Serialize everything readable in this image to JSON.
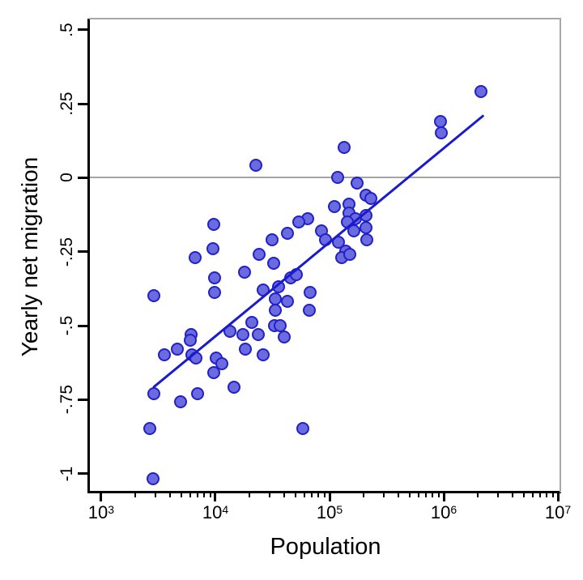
{
  "chart_data": {
    "type": "scatter",
    "title": "",
    "xlabel": "Population",
    "ylabel": "Yearly net migration",
    "x_scale": "log10",
    "xlim_log10": [
      2.894,
      7.028
    ],
    "ylim": [
      -1.064,
      0.538
    ],
    "grid": false,
    "legend": null,
    "zero_line_y": 0,
    "x_ticks": [
      {
        "value": 1000,
        "base": "10",
        "exp": "3"
      },
      {
        "value": 10000,
        "base": "10",
        "exp": "4"
      },
      {
        "value": 100000,
        "base": "10",
        "exp": "5"
      },
      {
        "value": 1000000,
        "base": "10",
        "exp": "6"
      },
      {
        "value": 10000000,
        "base": "10",
        "exp": "7"
      }
    ],
    "x_minor_tick_multipliers": [
      2,
      3,
      4,
      5,
      6,
      7,
      8,
      9
    ],
    "x_minor_tick_decades": [
      3,
      4,
      5,
      6
    ],
    "y_ticks": [
      {
        "value": 0.5,
        "label": ".5"
      },
      {
        "value": 0.25,
        "label": ".25"
      },
      {
        "value": 0,
        "label": "0"
      },
      {
        "value": -0.25,
        "label": "-.25"
      },
      {
        "value": -0.5,
        "label": "-.5"
      },
      {
        "value": -0.75,
        "label": "-.75"
      },
      {
        "value": -1,
        "label": "-1"
      }
    ],
    "points": [
      [
        2900,
        -0.4
      ],
      [
        2700,
        -0.85
      ],
      [
        2850,
        -1.02
      ],
      [
        2900,
        -0.73
      ],
      [
        3600,
        -0.6
      ],
      [
        4700,
        -0.58
      ],
      [
        6200,
        -0.53
      ],
      [
        6100,
        -0.55
      ],
      [
        6300,
        -0.6
      ],
      [
        6800,
        -0.61
      ],
      [
        5000,
        -0.76
      ],
      [
        7000,
        -0.73
      ],
      [
        6700,
        -0.27
      ],
      [
        9700,
        -0.16
      ],
      [
        9600,
        -0.24
      ],
      [
        10000,
        -0.34
      ],
      [
        10000,
        -0.39
      ],
      [
        10200,
        -0.61
      ],
      [
        11500,
        -0.63
      ],
      [
        9700,
        -0.66
      ],
      [
        13500,
        -0.52
      ],
      [
        17600,
        -0.53
      ],
      [
        21000,
        -0.49
      ],
      [
        24000,
        -0.53
      ],
      [
        18600,
        -0.58
      ],
      [
        14800,
        -0.71
      ],
      [
        18300,
        -0.32
      ],
      [
        22700,
        0.04
      ],
      [
        24400,
        -0.26
      ],
      [
        31700,
        -0.21
      ],
      [
        32500,
        -0.29
      ],
      [
        26300,
        -0.38
      ],
      [
        36000,
        -0.37
      ],
      [
        46000,
        -0.34
      ],
      [
        52000,
        -0.33
      ],
      [
        34000,
        -0.41
      ],
      [
        43000,
        -0.42
      ],
      [
        34000,
        -0.45
      ],
      [
        33000,
        -0.5
      ],
      [
        37500,
        -0.5
      ],
      [
        40500,
        -0.54
      ],
      [
        26500,
        -0.6
      ],
      [
        68000,
        -0.39
      ],
      [
        67000,
        -0.45
      ],
      [
        65000,
        -0.14
      ],
      [
        54000,
        -0.15
      ],
      [
        59000,
        -0.85
      ],
      [
        85000,
        -0.18
      ],
      [
        93000,
        -0.21
      ],
      [
        43000,
        -0.19
      ],
      [
        135000,
        0.1
      ],
      [
        119000,
        0.0
      ],
      [
        175000,
        -0.02
      ],
      [
        211000,
        -0.06
      ],
      [
        232000,
        -0.07
      ],
      [
        150000,
        -0.09
      ],
      [
        112000,
        -0.1
      ],
      [
        150000,
        -0.12
      ],
      [
        210000,
        -0.13
      ],
      [
        170000,
        -0.14
      ],
      [
        145000,
        -0.15
      ],
      [
        165000,
        -0.18
      ],
      [
        210000,
        -0.17
      ],
      [
        215000,
        -0.21
      ],
      [
        121000,
        -0.22
      ],
      [
        140000,
        -0.25
      ],
      [
        129000,
        -0.27
      ],
      [
        152000,
        -0.26
      ],
      [
        940000,
        0.19
      ],
      [
        960000,
        0.15
      ],
      [
        2150000,
        0.29
      ]
    ],
    "fit_line": {
      "x1": 2845,
      "y1": -0.71,
      "x2": 2230000,
      "y2": 0.21
    },
    "colors": {
      "marker_fill": "#6b6bdf",
      "marker_edge": "#2121c8",
      "fit_line": "#1a1ad1",
      "axis": "#000000",
      "reference_line": "#a4a4a4",
      "frame": "#a8a8a8",
      "background": "#ffffff"
    }
  }
}
